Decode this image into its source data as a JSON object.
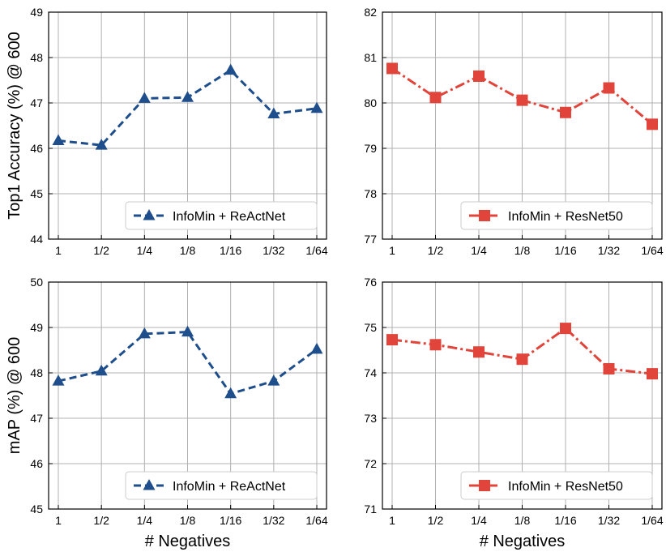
{
  "chart_data": [
    {
      "type": "line",
      "categories": [
        "1",
        "1/2",
        "1/4",
        "1/8",
        "1/16",
        "1/32",
        "1/64"
      ],
      "series": [
        {
          "name": "InfoMin + ReActNet",
          "values": [
            46.17,
            46.07,
            47.1,
            47.12,
            47.72,
            46.76,
            46.88
          ]
        }
      ],
      "ylim": [
        44,
        49
      ],
      "yticks": [
        "44",
        "45",
        "46",
        "47",
        "48",
        "49"
      ],
      "ylabel": "Top1 Accuracy (%)  @ 600",
      "xlabel": "",
      "color": "#1f4e8c",
      "marker": "triangle",
      "linestyle": "dashed",
      "legend": "bottom-right"
    },
    {
      "type": "line",
      "categories": [
        "1",
        "1/2",
        "1/4",
        "1/8",
        "1/16",
        "1/32",
        "1/64"
      ],
      "series": [
        {
          "name": "InfoMin + ResNet50",
          "values": [
            80.76,
            80.12,
            80.59,
            80.06,
            79.79,
            80.33,
            79.53
          ]
        }
      ],
      "ylim": [
        77,
        82
      ],
      "yticks": [
        "77",
        "78",
        "79",
        "80",
        "81",
        "82"
      ],
      "ylabel": "",
      "xlabel": "",
      "color": "#e0443a",
      "marker": "square",
      "linestyle": "dashdot",
      "legend": "bottom-right"
    },
    {
      "type": "line",
      "categories": [
        "1",
        "1/2",
        "1/4",
        "1/8",
        "1/16",
        "1/32",
        "1/64"
      ],
      "series": [
        {
          "name": "InfoMin + ReActNet",
          "values": [
            47.82,
            48.04,
            48.86,
            48.9,
            47.54,
            47.82,
            48.52
          ]
        }
      ],
      "ylim": [
        45,
        50
      ],
      "yticks": [
        "45",
        "46",
        "47",
        "48",
        "49",
        "50"
      ],
      "ylabel": "mAP (%)  @ 600",
      "xlabel": "# Negatives",
      "color": "#1f4e8c",
      "marker": "triangle",
      "linestyle": "dashed",
      "legend": "bottom-right"
    },
    {
      "type": "line",
      "categories": [
        "1",
        "1/2",
        "1/4",
        "1/8",
        "1/16",
        "1/32",
        "1/64"
      ],
      "series": [
        {
          "name": "InfoMin + ResNet50",
          "values": [
            74.73,
            74.62,
            74.46,
            74.3,
            74.98,
            74.09,
            73.98
          ]
        }
      ],
      "ylim": [
        71,
        76
      ],
      "yticks": [
        "71",
        "72",
        "73",
        "74",
        "75",
        "76"
      ],
      "ylabel": "",
      "xlabel": "# Negatives",
      "color": "#e0443a",
      "marker": "square",
      "linestyle": "dashdot",
      "legend": "bottom-right"
    }
  ]
}
